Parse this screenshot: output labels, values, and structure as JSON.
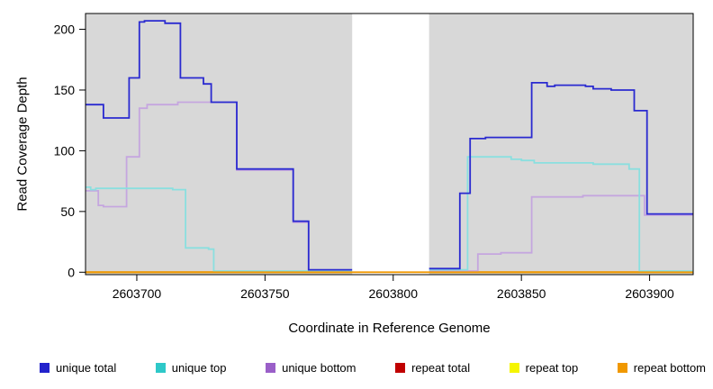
{
  "chart_data": {
    "type": "line",
    "style": "step",
    "title": "",
    "xlabel": "Coordinate in Reference Genome",
    "ylabel": "Read Coverage Depth",
    "xlim": [
      2603680,
      2603917
    ],
    "ylim": [
      -2,
      213
    ],
    "x_ticks": [
      2603700,
      2603750,
      2603800,
      2603850,
      2603900
    ],
    "y_ticks": [
      0,
      50,
      100,
      150,
      200
    ],
    "panel_bg": "#D8D8D8",
    "masked_region": {
      "x0": 2603784,
      "x1": 2603814,
      "color": "#FFFFFF"
    },
    "series": [
      {
        "name": "repeat total",
        "line_color": "#C00000",
        "points": [
          [
            2603680,
            0
          ],
          [
            2603917,
            0
          ]
        ]
      },
      {
        "name": "repeat top",
        "line_color": "#F5F500",
        "points": [
          [
            2603680,
            0
          ],
          [
            2603917,
            0
          ]
        ]
      },
      {
        "name": "unique bottom",
        "line_color": "#C5A6DF",
        "points": [
          [
            2603680,
            67
          ],
          [
            2603685,
            55
          ],
          [
            2603687,
            54
          ],
          [
            2603696,
            95
          ],
          [
            2603701,
            135
          ],
          [
            2603704,
            138
          ],
          [
            2603716,
            140
          ],
          [
            2603739,
            84
          ],
          [
            2603761,
            41
          ],
          [
            2603767,
            1
          ],
          [
            2603813,
            1
          ],
          [
            2603833,
            15
          ],
          [
            2603842,
            16
          ],
          [
            2603854,
            62
          ],
          [
            2603874,
            63
          ],
          [
            2603898,
            47
          ],
          [
            2603917,
            47
          ]
        ]
      },
      {
        "name": "unique top",
        "line_color": "#8ADFDF",
        "points": [
          [
            2603680,
            70
          ],
          [
            2603682,
            68
          ],
          [
            2603684,
            69
          ],
          [
            2603714,
            68
          ],
          [
            2603719,
            20
          ],
          [
            2603728,
            19
          ],
          [
            2603730,
            1
          ],
          [
            2603813,
            2
          ],
          [
            2603829,
            95
          ],
          [
            2603846,
            93
          ],
          [
            2603850,
            92
          ],
          [
            2603855,
            90
          ],
          [
            2603878,
            89
          ],
          [
            2603892,
            85
          ],
          [
            2603896,
            1
          ],
          [
            2603917,
            1
          ]
        ]
      },
      {
        "name": "unique total",
        "line_color": "#2A2AD0",
        "points": [
          [
            2603680,
            138
          ],
          [
            2603687,
            127
          ],
          [
            2603697,
            160
          ],
          [
            2603701,
            206
          ],
          [
            2603703,
            207
          ],
          [
            2603711,
            205
          ],
          [
            2603717,
            160
          ],
          [
            2603726,
            155
          ],
          [
            2603729,
            140
          ],
          [
            2603739,
            85
          ],
          [
            2603761,
            42
          ],
          [
            2603767,
            2
          ],
          [
            2603813,
            3
          ],
          [
            2603826,
            65
          ],
          [
            2603830,
            110
          ],
          [
            2603836,
            111
          ],
          [
            2603854,
            156
          ],
          [
            2603860,
            153
          ],
          [
            2603863,
            154
          ],
          [
            2603875,
            153
          ],
          [
            2603878,
            151
          ],
          [
            2603885,
            150
          ],
          [
            2603894,
            133
          ],
          [
            2603899,
            48
          ],
          [
            2603917,
            48
          ]
        ]
      },
      {
        "name": "repeat bottom",
        "line_color": "#F09800",
        "above_mask": true,
        "points": [
          [
            2603680,
            0
          ],
          [
            2603917,
            0
          ]
        ]
      }
    ],
    "legend": {
      "position": "bottom",
      "items": [
        {
          "label": "unique total",
          "color": "#2222CC"
        },
        {
          "label": "unique top",
          "color": "#2EC8C8"
        },
        {
          "label": "unique bottom",
          "color": "#9A5FC8"
        },
        {
          "label": "repeat total",
          "color": "#C00000"
        },
        {
          "label": "repeat top",
          "color": "#F5F500"
        },
        {
          "label": "repeat bottom",
          "color": "#F09800"
        }
      ]
    }
  }
}
